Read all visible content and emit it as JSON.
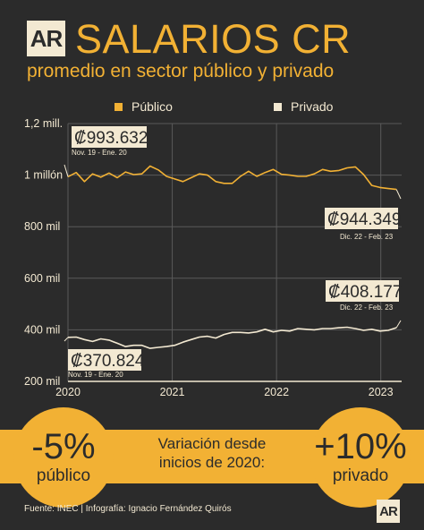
{
  "header": {
    "logo_text": "AR",
    "title": "SALARIOS CR",
    "subtitle": "promedio en sector público y privado"
  },
  "colors": {
    "background": "#2b2b2b",
    "accent": "#f2b134",
    "light": "#f3e9d2",
    "grid": "#5a5a5a"
  },
  "chart_data": {
    "type": "line",
    "x_start": "2019-11",
    "x_end": "2023-02",
    "xlim": [
      2020,
      2023.2
    ],
    "ylim": [
      200000,
      1200000
    ],
    "grid": true,
    "legend_position": "top",
    "x_ticks": [
      {
        "value": 2020,
        "label": "2020"
      },
      {
        "value": 2021,
        "label": "2021"
      },
      {
        "value": 2022,
        "label": "2022"
      },
      {
        "value": 2023,
        "label": "2023"
      }
    ],
    "y_ticks": [
      {
        "value": 1200000,
        "label": "1,2 mill."
      },
      {
        "value": 1000000,
        "label": "1 millón"
      },
      {
        "value": 800000,
        "label": "800 mil"
      },
      {
        "value": 600000,
        "label": "600 mil"
      },
      {
        "value": 400000,
        "label": "400 mil"
      },
      {
        "value": 200000,
        "label": "200 mil"
      }
    ],
    "series": [
      {
        "name": "Público",
        "color": "#f2b134",
        "values": [
          993632,
          1010000,
          975000,
          1005000,
          992000,
          1008000,
          990000,
          1012000,
          1002000,
          1005000,
          1035000,
          1020000,
          995000,
          985000,
          975000,
          990000,
          1005000,
          1000000,
          975000,
          968000,
          968000,
          995000,
          1015000,
          995000,
          1010000,
          1022000,
          1003000,
          1000000,
          995000,
          995000,
          1005000,
          1022000,
          1015000,
          1018000,
          1028000,
          1032000,
          1002000,
          960000,
          952000,
          948000,
          944349
        ]
      },
      {
        "name": "Privado",
        "color": "#f3e9d2",
        "values": [
          370824,
          372000,
          362000,
          355000,
          365000,
          360000,
          348000,
          335000,
          340000,
          340000,
          328000,
          332000,
          335000,
          340000,
          352000,
          362000,
          372000,
          375000,
          368000,
          382000,
          390000,
          390000,
          388000,
          392000,
          402000,
          392000,
          398000,
          395000,
          405000,
          402000,
          400000,
          405000,
          405000,
          408000,
          410000,
          405000,
          398000,
          402000,
          395000,
          398000,
          408177
        ]
      }
    ],
    "annotations": [
      {
        "series": 0,
        "point": "first",
        "value": "₡993.632",
        "date": "Nov. 19 - Ene. 20"
      },
      {
        "series": 0,
        "point": "last",
        "value": "₡944.349",
        "date": "Dic. 22 - Feb. 23"
      },
      {
        "series": 1,
        "point": "last",
        "value": "₡408.177",
        "date": "Dic. 22 - Feb. 23"
      },
      {
        "series": 1,
        "point": "first",
        "value": "₡370.824",
        "date": "Nov. 19 - Ene. 20"
      }
    ]
  },
  "summary": {
    "left_value": "-5%",
    "left_label": "público",
    "middle_line1": "Variación desde",
    "middle_line2": "inicios de 2020:",
    "right_value": "+10%",
    "right_label": "privado"
  },
  "footer": {
    "source": "Fuente: INEC | Infografía: Ignacio Fernández Quirós"
  }
}
